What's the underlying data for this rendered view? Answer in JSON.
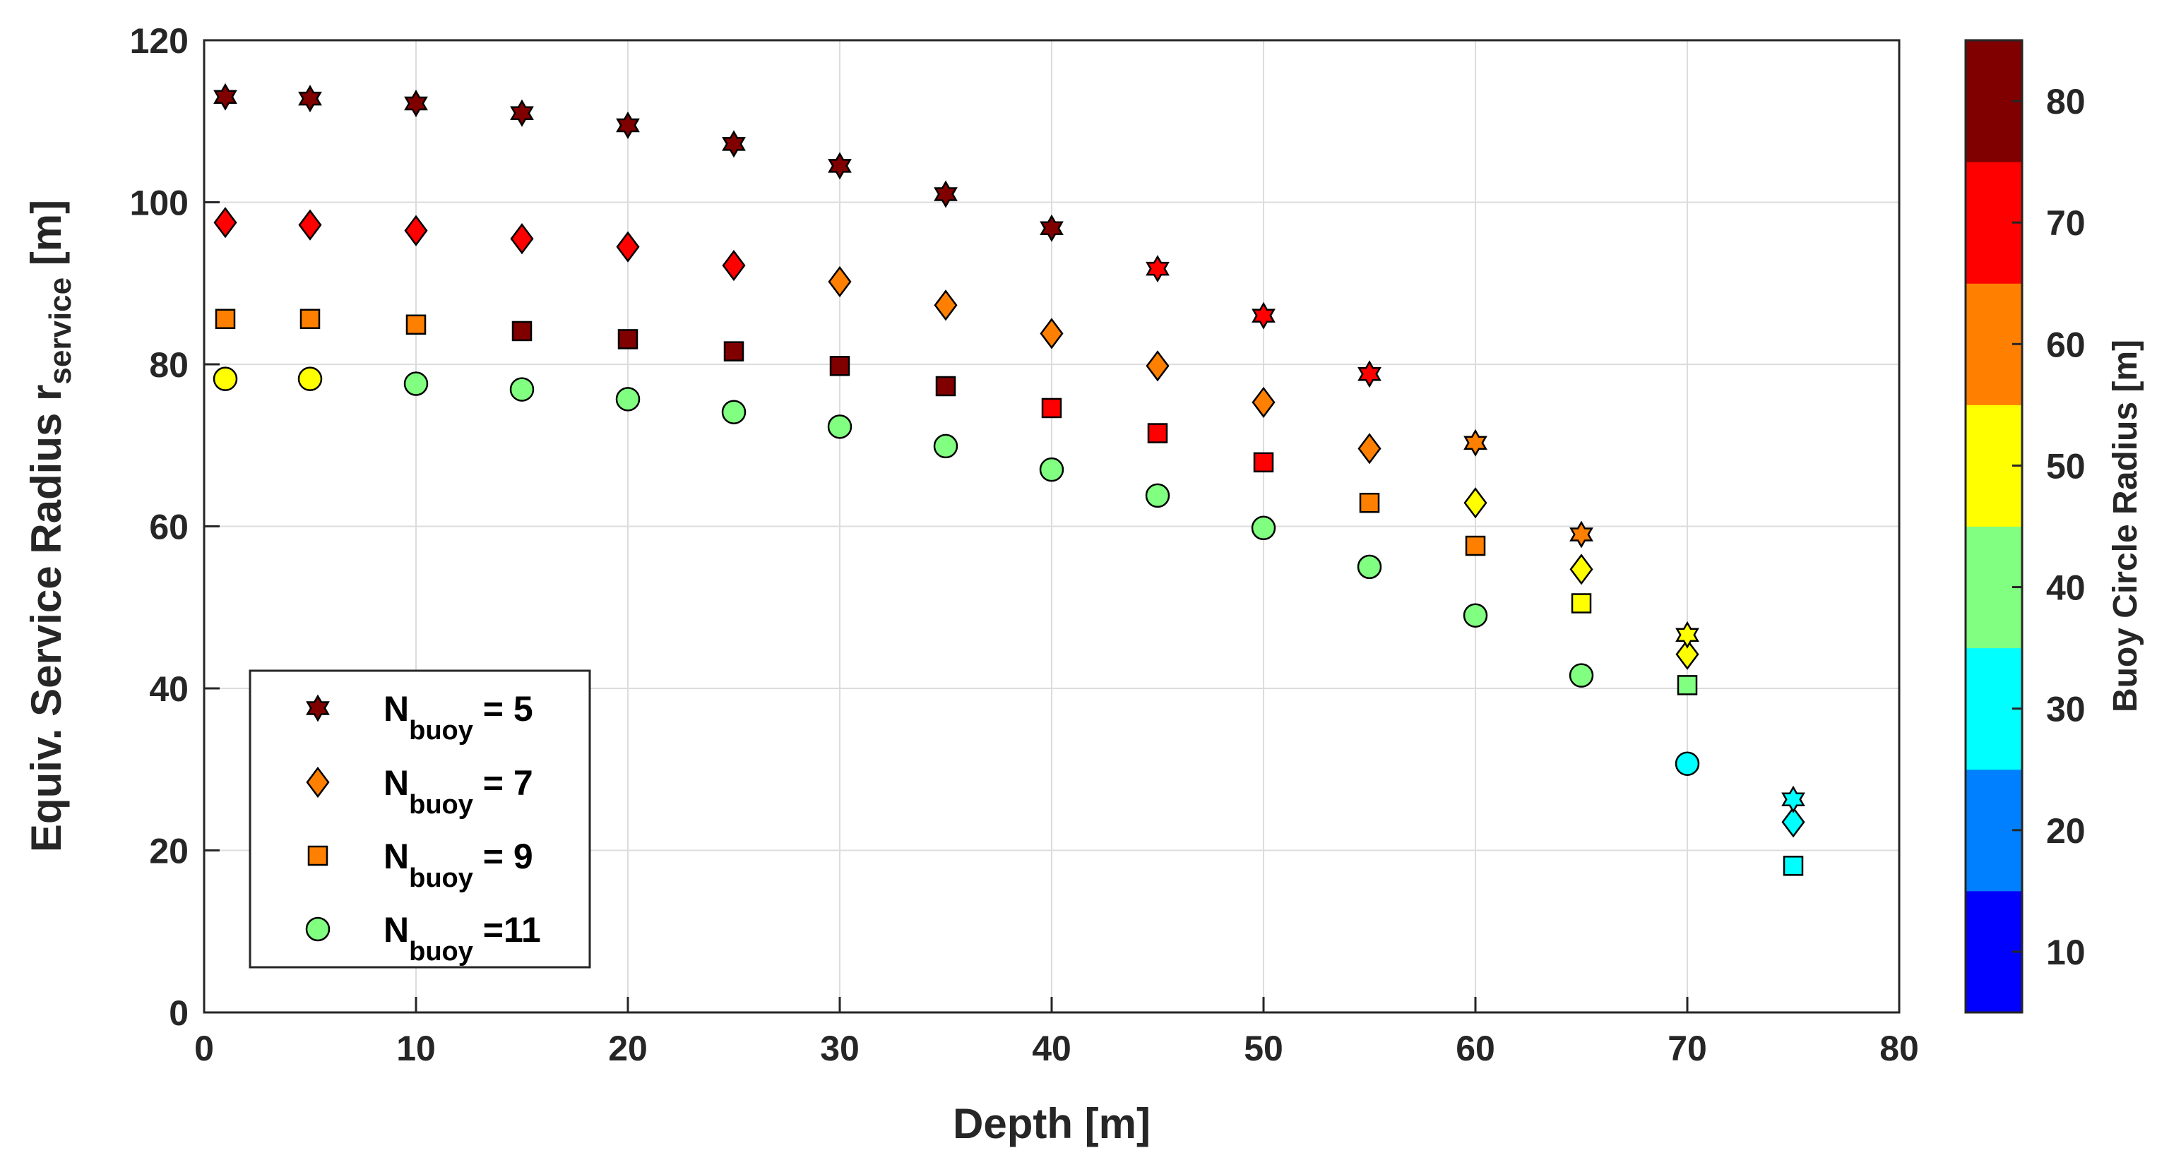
{
  "chart_data": {
    "type": "scatter",
    "title": "",
    "xlabel": "Depth [m]",
    "ylabel": {
      "main": "Equiv. Service Radius r",
      "subscript": "service",
      "suffix": " [m]"
    },
    "xlim": [
      0,
      80
    ],
    "ylim": [
      0,
      120
    ],
    "xticks": [
      "0",
      "10",
      "20",
      "30",
      "40",
      "50",
      "60",
      "70",
      "80"
    ],
    "yticks": [
      "0",
      "20",
      "40",
      "60",
      "80",
      "100",
      "120"
    ],
    "grid": true,
    "legend_position": "bottom-left",
    "colorbar": {
      "label": "Buoy Circle Radius [m]",
      "range": [
        5,
        85
      ],
      "ticks": [
        "10",
        "20",
        "30",
        "40",
        "50",
        "60",
        "70",
        "80"
      ],
      "band_colors": [
        "#0000ff",
        "#0080ff",
        "#00ffff",
        "#80ff80",
        "#ffff00",
        "#ff8000",
        "#ff0000",
        "#800000"
      ]
    },
    "series": [
      {
        "name": "N_buoy = 5",
        "legend": {
          "main": "N",
          "sub": "buoy",
          "suffix": " = 5"
        },
        "marker": "hexagram",
        "legend_color": "#800000",
        "x": [
          1,
          5,
          10,
          15,
          20,
          25,
          30,
          35,
          40,
          45,
          50,
          55,
          60,
          65,
          70,
          75
        ],
        "y": [
          113,
          112.8,
          112.2,
          111,
          109.5,
          107.2,
          104.5,
          101,
          96.8,
          91.8,
          86,
          78.8,
          70.3,
          59,
          46.6,
          26.3
        ],
        "colors": [
          "#800000",
          "#800000",
          "#800000",
          "#800000",
          "#800000",
          "#800000",
          "#800000",
          "#800000",
          "#800000",
          "#ff0000",
          "#ff0000",
          "#ff0000",
          "#ff8000",
          "#ff8000",
          "#ffff00",
          "#00ffff"
        ]
      },
      {
        "name": "N_buoy = 7",
        "legend": {
          "main": "N",
          "sub": "buoy",
          "suffix": " = 7"
        },
        "marker": "diamond",
        "legend_color": "#ff8000",
        "x": [
          1,
          5,
          10,
          15,
          20,
          25,
          30,
          35,
          40,
          45,
          50,
          55,
          60,
          65,
          70,
          75
        ],
        "y": [
          97.5,
          97.2,
          96.5,
          95.5,
          94.5,
          92.2,
          90.2,
          87.3,
          83.8,
          79.8,
          75.3,
          69.6,
          62.9,
          54.7,
          44.2,
          23.5
        ],
        "colors": [
          "#ff0000",
          "#ff0000",
          "#ff0000",
          "#ff0000",
          "#ff0000",
          "#ff0000",
          "#ff8000",
          "#ff8000",
          "#ff8000",
          "#ff8000",
          "#ff8000",
          "#ff8000",
          "#ffff00",
          "#ffff00",
          "#ffff00",
          "#00ffff"
        ]
      },
      {
        "name": "N_buoy = 9",
        "legend": {
          "main": "N",
          "sub": "buoy",
          "suffix": " = 9"
        },
        "marker": "square",
        "legend_color": "#ff8000",
        "x": [
          1,
          5,
          10,
          15,
          20,
          25,
          30,
          35,
          40,
          45,
          50,
          55,
          60,
          65,
          70,
          75
        ],
        "y": [
          85.6,
          85.6,
          84.9,
          84.1,
          83.1,
          81.6,
          79.8,
          77.3,
          74.6,
          71.5,
          67.9,
          62.9,
          57.6,
          50.5,
          40.4,
          18.1
        ],
        "colors": [
          "#ff8000",
          "#ff8000",
          "#ff8000",
          "#800000",
          "#800000",
          "#800000",
          "#800000",
          "#800000",
          "#ff0000",
          "#ff0000",
          "#ff0000",
          "#ff8000",
          "#ff8000",
          "#ffff00",
          "#80ff80",
          "#00ffff"
        ]
      },
      {
        "name": "N_buoy =11",
        "legend": {
          "main": "N",
          "sub": "buoy",
          "suffix": " =11"
        },
        "marker": "circle",
        "legend_color": "#80ff80",
        "x": [
          1,
          5,
          10,
          15,
          20,
          25,
          30,
          35,
          40,
          45,
          50,
          55,
          60,
          65,
          70
        ],
        "y": [
          78.2,
          78.2,
          77.6,
          76.9,
          75.7,
          74.1,
          72.3,
          69.9,
          67,
          63.8,
          59.8,
          55,
          49,
          41.6,
          30.7
        ],
        "colors": [
          "#ffff00",
          "#ffff00",
          "#80ff80",
          "#80ff80",
          "#80ff80",
          "#80ff80",
          "#80ff80",
          "#80ff80",
          "#80ff80",
          "#80ff80",
          "#80ff80",
          "#80ff80",
          "#80ff80",
          "#80ff80",
          "#00ffff"
        ]
      }
    ]
  }
}
